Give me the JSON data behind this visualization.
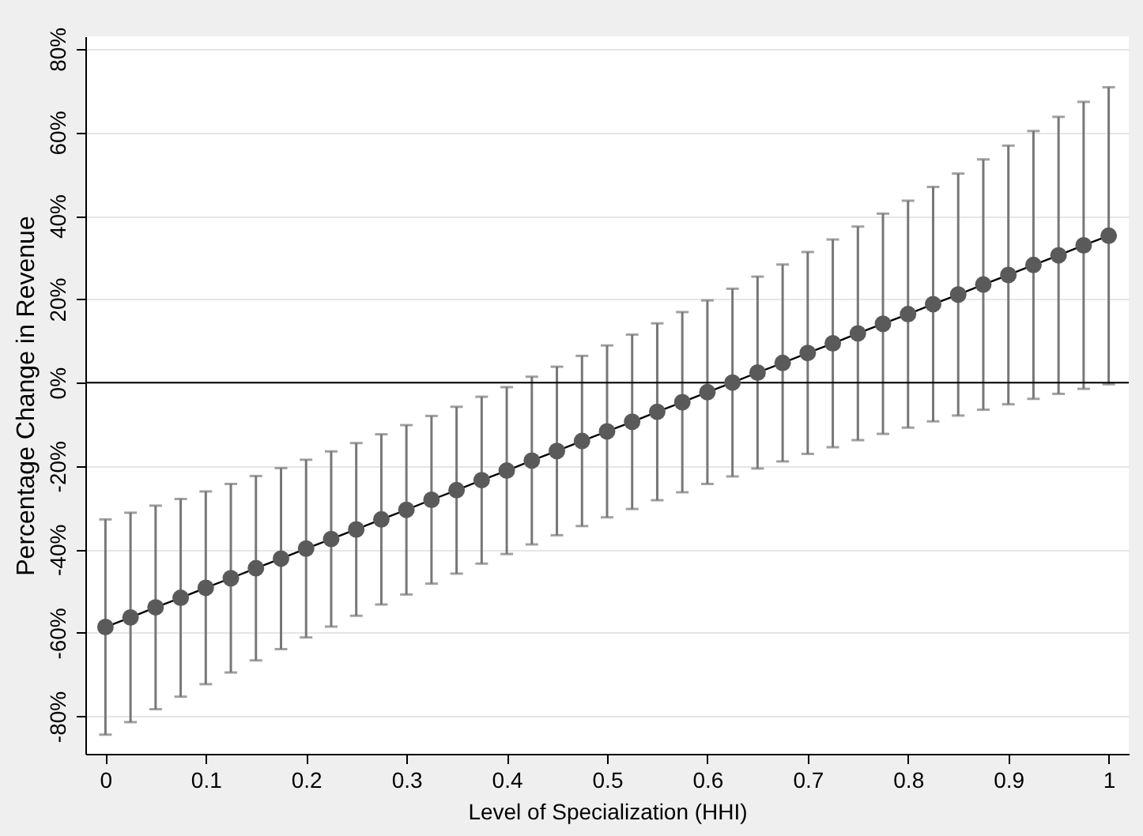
{
  "chart_data": {
    "type": "line",
    "xlabel": "Level of Specialization (HHI)",
    "ylabel": "Percentage Change in Revenue",
    "x": [
      0,
      0.025,
      0.05,
      0.075,
      0.1,
      0.125,
      0.15,
      0.175,
      0.2,
      0.225,
      0.25,
      0.275,
      0.3,
      0.325,
      0.35,
      0.375,
      0.4,
      0.425,
      0.45,
      0.475,
      0.5,
      0.525,
      0.55,
      0.575,
      0.6,
      0.625,
      0.65,
      0.675,
      0.7,
      0.725,
      0.75,
      0.775,
      0.8,
      0.825,
      0.85,
      0.875,
      0.9,
      0.925,
      0.95,
      0.975,
      1
    ],
    "series": [
      {
        "color": "#5a5a5a",
        "values": [
          -58.6,
          -56.3,
          -53.9,
          -51.6,
          -49.2,
          -46.9,
          -44.5,
          -42.2,
          -39.8,
          -37.5,
          -35.2,
          -32.8,
          -30.5,
          -28.1,
          -25.8,
          -23.4,
          -21.1,
          -18.7,
          -16.4,
          -14.0,
          -11.7,
          -9.4,
          -7.0,
          -4.7,
          -2.3,
          0.0,
          2.4,
          4.7,
          7.1,
          9.4,
          11.8,
          14.1,
          16.4,
          18.8,
          21.1,
          23.5,
          25.8,
          28.2,
          30.5,
          32.9,
          35.2
        ],
        "errors": [
          25.8,
          25.1,
          24.4,
          23.7,
          23.1,
          22.6,
          22.1,
          21.7,
          21.3,
          21.0,
          20.7,
          20.4,
          20.3,
          20.1,
          20.0,
          20.0,
          20.0,
          20.1,
          20.2,
          20.4,
          20.6,
          20.9,
          21.2,
          21.6,
          22.0,
          22.5,
          23.0,
          23.6,
          24.2,
          24.9,
          25.6,
          26.4,
          27.2,
          28.1,
          29.0,
          30.0,
          31.0,
          32.1,
          33.2,
          34.4,
          35.6
        ]
      }
    ],
    "xlim": [
      -0.02,
      1.02
    ],
    "xticks": [
      0,
      0.1,
      0.2,
      0.3,
      0.4,
      0.5,
      0.6,
      0.7,
      0.8,
      0.9,
      1
    ],
    "ylim": [
      -89,
      83
    ],
    "yticks": [
      {
        "value": -80,
        "label": "-80%"
      },
      {
        "value": -60,
        "label": "-60%"
      },
      {
        "value": -40,
        "label": "-40%"
      },
      {
        "value": -20,
        "label": "-20%"
      },
      {
        "value": 0,
        "label": "0%"
      },
      {
        "value": 20,
        "label": "20%"
      },
      {
        "value": 40,
        "label": "40%"
      },
      {
        "value": 60,
        "label": "60%"
      },
      {
        "value": 80,
        "label": "80%"
      }
    ],
    "ref_lines": [
      {
        "axis": "y",
        "value": 0,
        "color": "#000000"
      }
    ],
    "grid": "y",
    "marker": "circle",
    "line_style": "solid",
    "legend": false
  }
}
